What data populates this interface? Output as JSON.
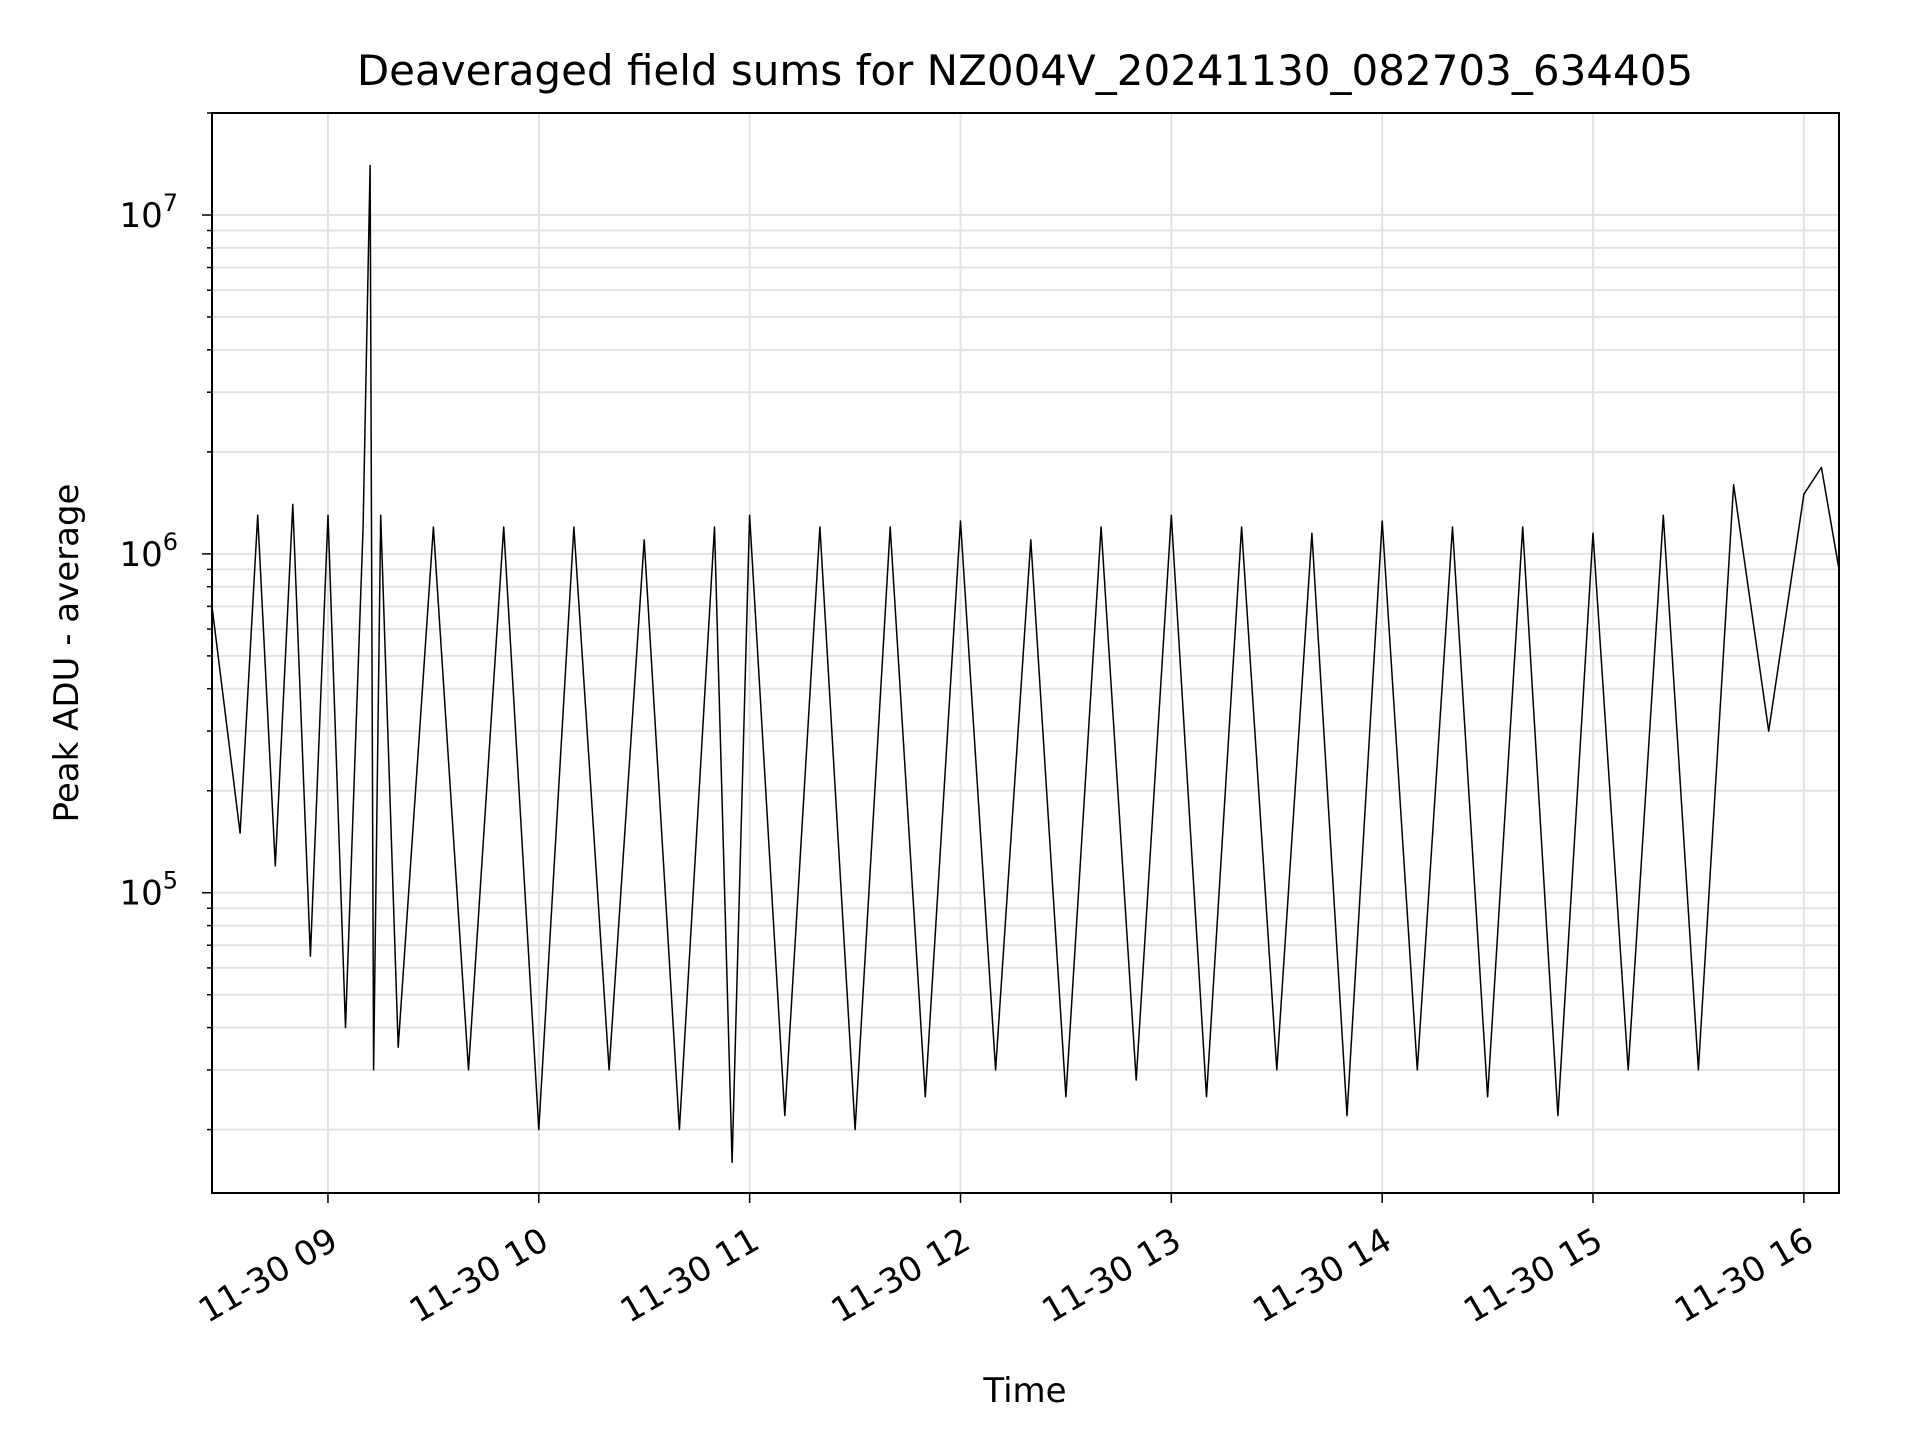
{
  "chart_data": {
    "type": "line",
    "title": "Deaveraged field sums for NZ004V_20241130_082703_634405",
    "xlabel": "Time",
    "ylabel": "Peak ADU - average",
    "x_axis": {
      "scale": "time",
      "range": [
        "2024-11-30 08:27",
        "2024-11-30 16:10"
      ],
      "ticks": [
        "11-30 09",
        "11-30 10",
        "11-30 11",
        "11-30 12",
        "11-30 13",
        "11-30 14",
        "11-30 15",
        "11-30 16"
      ]
    },
    "y_axis": {
      "scale": "log",
      "range": [
        13000,
        20000000
      ],
      "ticks": [
        "10^5",
        "10^6",
        "10^7"
      ]
    },
    "grid": true,
    "line_color": "#000000",
    "series": [
      {
        "x": [
          "08:27",
          "08:35",
          "08:40",
          "08:45",
          "08:50",
          "08:55",
          "09:00",
          "09:05",
          "09:10",
          "09:12",
          "09:13",
          "09:15",
          "09:20",
          "09:30",
          "09:40",
          "09:50",
          "10:00",
          "10:10",
          "10:20",
          "10:30",
          "10:40",
          "10:50",
          "10:55",
          "11:00",
          "11:10",
          "11:20",
          "11:30",
          "11:40",
          "11:50",
          "12:00",
          "12:10",
          "12:20",
          "12:30",
          "12:40",
          "12:50",
          "13:00",
          "13:10",
          "13:20",
          "13:30",
          "13:40",
          "13:50",
          "14:00",
          "14:10",
          "14:20",
          "14:30",
          "14:40",
          "14:50",
          "15:00",
          "15:10",
          "15:20",
          "15:30",
          "15:40",
          "15:50",
          "16:00",
          "16:05",
          "16:10"
        ],
        "y": [
          700000,
          150000,
          1300000,
          120000,
          1400000,
          65000,
          1300000,
          40000,
          1200000,
          14000000,
          30000,
          1300000,
          35000,
          1200000,
          30000,
          1200000,
          20000,
          1200000,
          30000,
          1100000,
          20000,
          1200000,
          16000,
          1300000,
          22000,
          1200000,
          20000,
          1200000,
          25000,
          1250000,
          30000,
          1100000,
          25000,
          1200000,
          28000,
          1300000,
          25000,
          1200000,
          30000,
          1150000,
          22000,
          1250000,
          30000,
          1200000,
          25000,
          1200000,
          22000,
          1150000,
          30000,
          1300000,
          30000,
          1600000,
          300000,
          1500000,
          1800000,
          900000
        ]
      }
    ]
  }
}
